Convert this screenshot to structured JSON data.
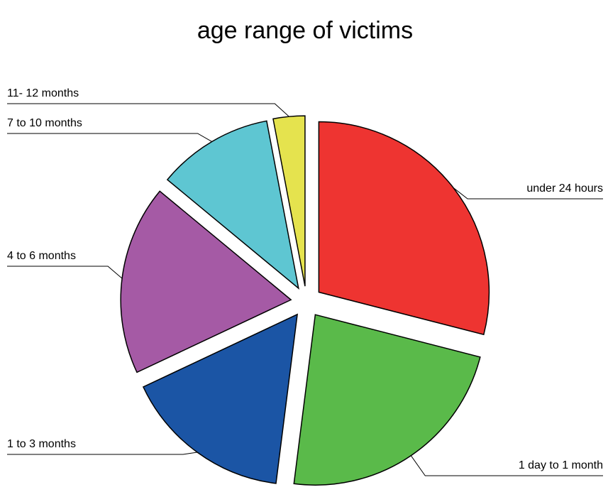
{
  "chart_data": {
    "type": "pie",
    "title": "age range of victims",
    "categories": [
      "under 24 hours",
      "1 day to 1 month",
      "1 to 3 months",
      "4 to 6 months",
      "7 to 10 months",
      "11- 12 months"
    ],
    "values": [
      29,
      23,
      16,
      18,
      11,
      3
    ],
    "colors": [
      "#ee3431",
      "#5aba4a",
      "#1b55a5",
      "#a55aa5",
      "#5ec6d2",
      "#e5e34e"
    ]
  }
}
